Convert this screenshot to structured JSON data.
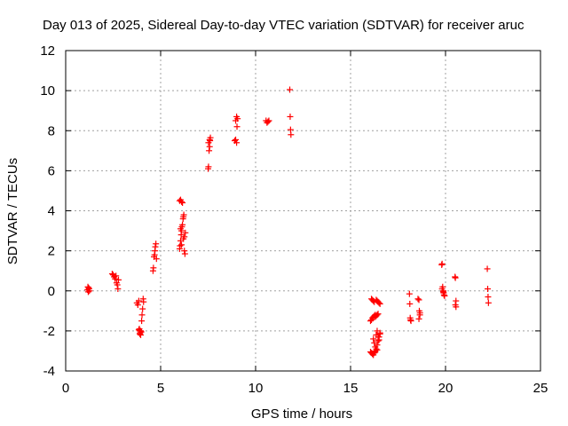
{
  "chart_data": {
    "type": "scatter",
    "title": "Day 013 of 2025, Sidereal Day-to-day VTEC variation (SDTVAR) for receiver aruc",
    "xlabel": "GPS time / hours",
    "ylabel": "SDTVAR / TECUs",
    "xlim": [
      0,
      25
    ],
    "ylim": [
      -4,
      12
    ],
    "xticks": [
      0,
      5,
      10,
      15,
      20,
      25
    ],
    "yticks": [
      -4,
      -2,
      0,
      2,
      4,
      6,
      8,
      10,
      12
    ],
    "xtick_labels": [
      "0",
      "5",
      "10",
      "15",
      "20",
      "25"
    ],
    "ytick_labels": [
      "-4",
      "-2",
      "0",
      "2",
      "4",
      "6",
      "8",
      "10",
      "12"
    ],
    "grid": true,
    "marker": "+",
    "color": "#ff0000",
    "series": [
      {
        "name": "SDTVAR",
        "x": [
          1.15,
          1.17,
          1.19,
          1.21,
          1.23,
          1.25,
          2.45,
          2.5,
          2.55,
          2.6,
          2.65,
          2.68,
          2.72,
          2.75,
          2.78,
          3.75,
          3.8,
          3.85,
          3.88,
          3.9,
          3.92,
          3.95,
          3.98,
          4.0,
          4.02,
          4.05,
          4.08,
          4.1,
          3.85,
          3.9,
          3.95,
          4.6,
          4.62,
          4.65,
          4.68,
          4.7,
          4.72,
          4.75,
          4.78,
          6.0,
          6.02,
          6.05,
          6.08,
          6.1,
          6.12,
          6.15,
          6.18,
          6.2,
          6.22,
          6.25,
          6.28,
          6.0,
          6.05,
          6.1,
          6.15,
          6.2,
          6.25,
          6.3,
          6.05,
          6.1,
          7.5,
          7.52,
          7.55,
          7.58,
          7.6,
          7.62,
          7.52,
          7.58,
          8.9,
          8.95,
          9.0,
          9.02,
          9.05,
          8.95,
          9.0,
          10.55,
          10.6,
          10.65,
          10.7,
          11.8,
          11.82,
          11.84,
          11.86,
          16.05,
          16.1,
          16.15,
          16.2,
          16.25,
          16.3,
          16.35,
          16.4,
          16.45,
          16.5,
          16.55,
          16.1,
          16.15,
          16.2,
          16.25,
          16.3,
          16.35,
          16.4,
          16.45,
          16.05,
          16.1,
          16.15,
          16.2,
          16.25,
          16.3,
          16.35,
          16.4,
          16.45,
          16.5,
          16.55,
          16.2,
          16.25,
          16.3,
          16.35,
          16.4,
          16.45,
          16.5,
          16.55,
          16.3,
          16.4,
          18.1,
          18.12,
          18.14,
          18.16,
          18.18,
          18.55,
          18.6,
          18.62,
          18.65,
          18.6,
          18.65,
          19.8,
          19.82,
          19.85,
          19.88,
          19.9,
          19.92,
          19.95,
          19.82,
          19.88,
          20.5,
          20.52,
          20.55,
          20.52,
          20.55,
          22.2,
          22.22,
          22.24,
          22.26
        ],
        "y": [
          0.05,
          0.2,
          -0.05,
          0.15,
          0.1,
          0.0,
          0.85,
          0.8,
          0.7,
          0.6,
          0.75,
          0.4,
          0.3,
          0.1,
          0.55,
          -0.6,
          -0.7,
          -0.5,
          -1.9,
          -2.0,
          -2.1,
          -2.2,
          -2.05,
          -1.5,
          -1.2,
          -0.9,
          -0.4,
          -0.55,
          -1.95,
          -2.15,
          -2.0,
          1.0,
          1.15,
          1.7,
          1.8,
          2.0,
          2.2,
          2.35,
          1.6,
          2.1,
          2.25,
          2.5,
          2.8,
          3.0,
          3.2,
          3.3,
          3.6,
          3.7,
          3.8,
          2.0,
          1.85,
          4.5,
          4.55,
          4.45,
          4.4,
          2.6,
          2.7,
          2.9,
          3.1,
          2.3,
          6.1,
          6.2,
          7.0,
          7.2,
          7.5,
          7.65,
          7.4,
          7.55,
          7.5,
          7.55,
          7.4,
          8.2,
          8.6,
          8.5,
          8.7,
          8.5,
          8.4,
          8.45,
          8.5,
          10.05,
          8.7,
          8.05,
          7.8,
          -1.5,
          -1.45,
          -1.35,
          -1.3,
          -1.25,
          -1.2,
          -0.45,
          -0.5,
          -0.55,
          -0.6,
          -0.65,
          -0.4,
          -0.45,
          -0.5,
          -0.55,
          -1.3,
          -1.25,
          -1.2,
          -1.15,
          -3.05,
          -3.1,
          -3.15,
          -3.2,
          -3.1,
          -3.0,
          -2.9,
          -2.7,
          -2.5,
          -2.3,
          -2.1,
          -2.4,
          -2.6,
          -2.8,
          -2.2,
          -2.0,
          -2.3,
          -2.45,
          -2.15,
          -3.05,
          -2.95,
          -0.15,
          -0.65,
          -1.35,
          -1.45,
          -1.5,
          -0.4,
          -0.45,
          -1.0,
          -1.1,
          -1.4,
          -1.2,
          1.3,
          1.35,
          0.2,
          0.0,
          -0.1,
          -0.2,
          -0.25,
          0.1,
          -0.05,
          0.7,
          0.65,
          -0.5,
          -0.7,
          -0.8,
          1.1,
          0.1,
          -0.3,
          -0.6
        ]
      }
    ]
  }
}
